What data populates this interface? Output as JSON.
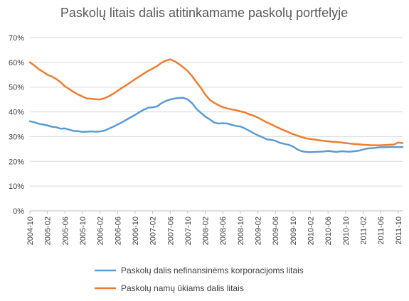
{
  "chart_data": {
    "type": "line",
    "title": "Paskolų litais dalis atitinkamame paskolų portfelyje",
    "xlabel": "",
    "ylabel": "",
    "ylim": [
      0,
      70
    ],
    "y_ticks": [
      "0%",
      "10%",
      "20%",
      "30%",
      "40%",
      "50%",
      "60%",
      "70%"
    ],
    "x_tick_labels": [
      "2004-10",
      "2005-02",
      "2005-06",
      "2005-10",
      "2006-02",
      "2006-06",
      "2006-10",
      "2007-02",
      "2007-06",
      "2007-10",
      "2008-02",
      "2008-06",
      "2008-10",
      "2009-02",
      "2009-06",
      "2009-10",
      "2010-02",
      "2010-06",
      "2010-10",
      "2011-02",
      "2011-06",
      "2011-10"
    ],
    "x": [
      "2004-10",
      "2004-11",
      "2004-12",
      "2005-01",
      "2005-02",
      "2005-03",
      "2005-04",
      "2005-05",
      "2005-06",
      "2005-07",
      "2005-08",
      "2005-09",
      "2005-10",
      "2005-11",
      "2005-12",
      "2006-01",
      "2006-02",
      "2006-03",
      "2006-04",
      "2006-05",
      "2006-06",
      "2006-07",
      "2006-08",
      "2006-09",
      "2006-10",
      "2006-11",
      "2006-12",
      "2007-01",
      "2007-02",
      "2007-03",
      "2007-04",
      "2007-05",
      "2007-06",
      "2007-07",
      "2007-08",
      "2007-09",
      "2007-10",
      "2007-11",
      "2007-12",
      "2008-01",
      "2008-02",
      "2008-03",
      "2008-04",
      "2008-05",
      "2008-06",
      "2008-07",
      "2008-08",
      "2008-09",
      "2008-10",
      "2008-11",
      "2008-12",
      "2009-01",
      "2009-02",
      "2009-03",
      "2009-04",
      "2009-05",
      "2009-06",
      "2009-07",
      "2009-08",
      "2009-09",
      "2009-10",
      "2009-11",
      "2009-12",
      "2010-01",
      "2010-02",
      "2010-03",
      "2010-04",
      "2010-05",
      "2010-06",
      "2010-07",
      "2010-08",
      "2010-09",
      "2010-10",
      "2010-11",
      "2010-12",
      "2011-01",
      "2011-02",
      "2011-03",
      "2011-04",
      "2011-05",
      "2011-06",
      "2011-07",
      "2011-08",
      "2011-09",
      "2011-10",
      "2011-11"
    ],
    "series": [
      {
        "name": "Paskolų dalis nefinansinėms korporacijoms litais",
        "color": "#5b9bd5",
        "values": [
          36.2,
          35.8,
          35.2,
          34.9,
          34.5,
          34.0,
          33.8,
          33.2,
          33.3,
          32.8,
          32.3,
          32.2,
          31.9,
          32.0,
          32.1,
          32.0,
          32.1,
          32.4,
          33.2,
          34.0,
          34.9,
          35.8,
          36.8,
          37.8,
          38.8,
          39.9,
          40.9,
          41.7,
          41.8,
          42.2,
          43.5,
          44.4,
          45.0,
          45.4,
          45.6,
          45.7,
          45.0,
          43.5,
          41.2,
          39.6,
          38.1,
          37.0,
          35.7,
          35.3,
          35.4,
          35.3,
          34.8,
          34.3,
          34.1,
          33.3,
          32.4,
          31.4,
          30.5,
          29.8,
          28.9,
          28.7,
          28.3,
          27.5,
          27.1,
          26.7,
          26.0,
          24.8,
          24.1,
          23.8,
          23.7,
          23.8,
          23.9,
          24.0,
          24.2,
          24.0,
          23.8,
          24.1,
          24.0,
          23.9,
          24.1,
          24.3,
          24.8,
          25.2,
          25.3,
          25.5,
          25.7,
          25.7,
          25.8,
          25.8,
          25.8,
          25.8
        ]
      },
      {
        "name": "Paskolų namų ūkiams dalis litais",
        "color": "#ed7d31",
        "values": [
          60.0,
          58.8,
          57.3,
          56.2,
          55.0,
          54.3,
          53.3,
          52.0,
          50.3,
          49.2,
          48.0,
          47.0,
          46.2,
          45.4,
          45.3,
          45.1,
          45.0,
          45.5,
          46.3,
          47.3,
          48.5,
          49.7,
          50.8,
          52.0,
          53.2,
          54.3,
          55.5,
          56.6,
          57.5,
          58.5,
          59.8,
          60.7,
          61.2,
          60.5,
          59.3,
          58.0,
          56.5,
          54.4,
          52.0,
          49.7,
          47.0,
          44.9,
          43.7,
          42.7,
          41.9,
          41.4,
          41.0,
          40.7,
          40.2,
          39.8,
          39.0,
          38.5,
          37.7,
          36.7,
          35.8,
          35.0,
          34.1,
          33.3,
          32.5,
          31.8,
          31.0,
          30.4,
          29.8,
          29.3,
          29.0,
          28.8,
          28.5,
          28.3,
          28.1,
          27.9,
          27.8,
          27.6,
          27.4,
          27.2,
          27.0,
          26.9,
          26.7,
          26.6,
          26.5,
          26.5,
          26.5,
          26.6,
          26.7,
          26.8,
          27.6,
          27.4
        ]
      }
    ],
    "grid": "horizontal",
    "legend_position": "bottom"
  }
}
